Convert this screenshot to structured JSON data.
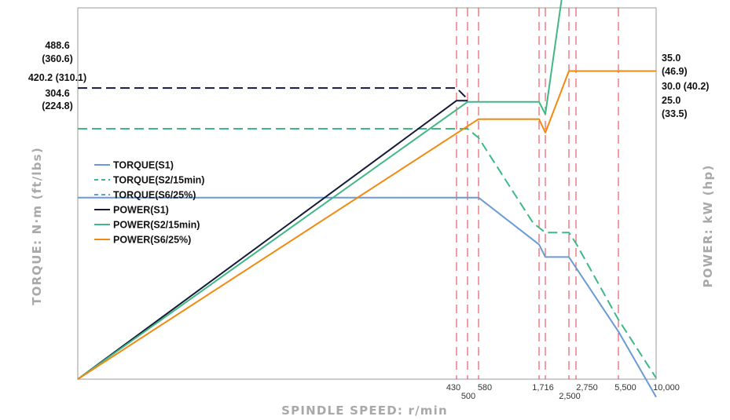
{
  "chart_data": {
    "type": "line",
    "xlabel": "SPINDLE SPEED: r/min",
    "ylabel_left": "TORQUE: N·m (ft/lbs)",
    "ylabel_right": "POWER: kW (hp)",
    "x_ticks": [
      "430",
      "500",
      "580",
      "1,716",
      "2,500",
      "2,750",
      "5,500",
      "10,000"
    ],
    "vertical_markers": [
      430,
      500,
      580,
      1600,
      1716,
      2500,
      2750,
      5500
    ],
    "left_labels": [
      {
        "line1": "488.6",
        "line2": "(360.6)",
        "value": 488.6
      },
      {
        "line1": "420.2 (310.1)",
        "line2": "",
        "value": 420.2
      },
      {
        "line1": "304.6",
        "line2": "(224.8)",
        "value": 304.6
      }
    ],
    "right_labels": [
      {
        "line1": "35.0",
        "line2": "(46.9)",
        "value": 35.0
      },
      {
        "line1": "30.0 (40.2)",
        "line2": "",
        "value": 30.0
      },
      {
        "line1": "25.0",
        "line2": "(33.5)",
        "value": 25.0
      }
    ],
    "series": [
      {
        "name": "TORQUE(S1)",
        "color": "#6a9ad6",
        "dash": "solid",
        "points": [
          [
            0,
            304.6
          ],
          [
            580,
            304.6
          ],
          [
            1600,
            226
          ],
          [
            1716,
            205
          ],
          [
            2500,
            205
          ],
          [
            5500,
            80
          ],
          [
            10000,
            -30
          ]
        ]
      },
      {
        "name": "TORQUE(S2/15min)",
        "color": "#3fb886",
        "dash": "dashed",
        "points": [
          [
            0,
            420.2
          ],
          [
            500,
            420.2
          ],
          [
            580,
            405
          ],
          [
            1500,
            262
          ],
          [
            1716,
            246
          ],
          [
            2500,
            246
          ],
          [
            2750,
            228
          ],
          [
            5500,
            100
          ],
          [
            10000,
            2
          ]
        ]
      },
      {
        "name": "TORQUE(S6/25%)",
        "color": "#6a9ad6",
        "dash": "dashed",
        "points": []
      },
      {
        "name": "POWER(S1)",
        "color": "#141a38",
        "dash": "solid",
        "points": [
          [
            0,
            0
          ],
          [
            430,
            22.6
          ],
          [
            500,
            22.6
          ]
        ]
      },
      {
        "name": "POWER(S2/15min)",
        "color": "#3fb886",
        "dash": "solid",
        "points": [
          [
            0,
            0
          ],
          [
            500,
            22.5
          ],
          [
            1600,
            22.5
          ],
          [
            1716,
            21.5
          ],
          [
            2500,
            35.0
          ],
          [
            2750,
            35.0
          ],
          [
            5500,
            35.0
          ],
          [
            10000,
            33.2
          ]
        ]
      },
      {
        "name": "POWER(S6/25%)",
        "color": "#f28a12",
        "dash": "solid",
        "points": [
          [
            0,
            0
          ],
          [
            580,
            21.1
          ],
          [
            1600,
            21.1
          ],
          [
            1716,
            20.0
          ],
          [
            2500,
            25.0
          ],
          [
            2750,
            25.0
          ],
          [
            5500,
            25.0
          ],
          [
            10000,
            25.0
          ]
        ]
      }
    ],
    "torque_dashed_black": {
      "color": "#141a38",
      "points": [
        [
          0,
          488.6
        ],
        [
          430,
          488.6
        ],
        [
          500,
          470
        ]
      ]
    },
    "colors": {
      "marker": "#e0404a",
      "frame": "#999999"
    }
  }
}
